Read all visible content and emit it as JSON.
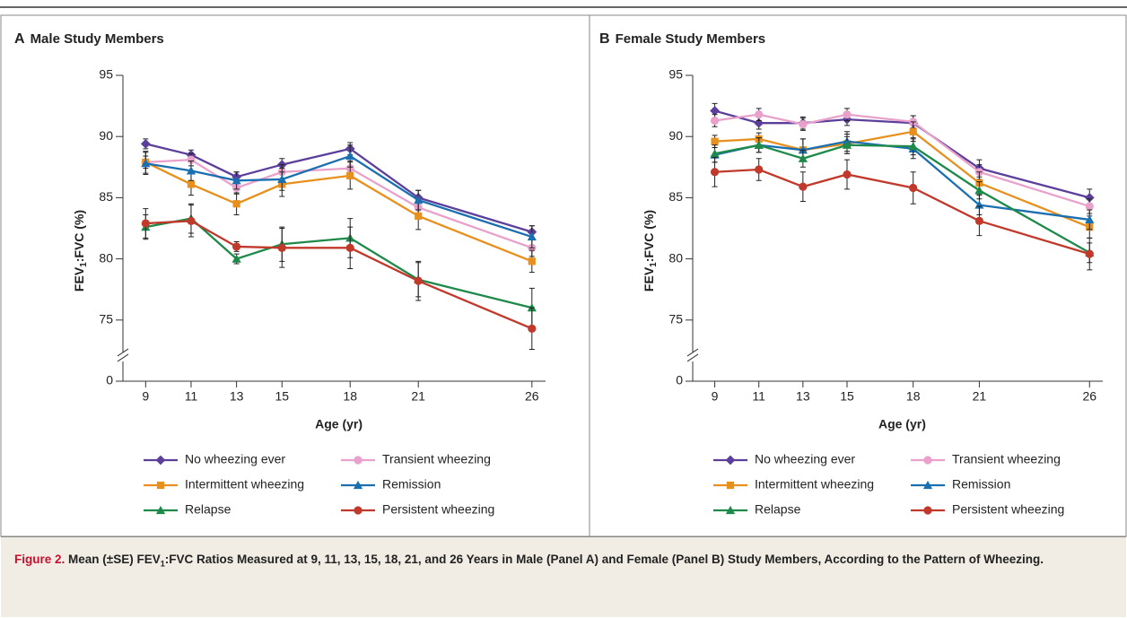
{
  "chart_data": [
    {
      "type": "line",
      "panel_label": "A",
      "title": "Male Study Members",
      "ylabel": [
        "FEV",
        "1",
        ":FVC (%)"
      ],
      "xlabel": "Age (yr)",
      "x": [
        9,
        11,
        13,
        15,
        18,
        21,
        26
      ],
      "xlim": [
        8,
        26.6
      ],
      "xticks": [
        9,
        11,
        13,
        15,
        18,
        21,
        26
      ],
      "ylim": [
        0,
        95
      ],
      "yticks": [
        0,
        75,
        80,
        85,
        90,
        95
      ],
      "axis_break": true,
      "series": [
        {
          "name": "No wheezing ever",
          "color": "#5b3f9a",
          "marker": "diamond",
          "values": [
            89.4,
            88.5,
            86.7,
            87.7,
            89.0,
            85.0,
            82.2
          ],
          "errors": [
            0.4,
            0.4,
            0.4,
            0.5,
            0.5,
            0.6,
            0.5
          ]
        },
        {
          "name": "Transient wheezing",
          "color": "#e9a1cb",
          "marker": "circle",
          "values": [
            87.9,
            88.1,
            85.8,
            87.1,
            87.4,
            84.2,
            80.9
          ],
          "errors": [
            0.5,
            0.5,
            0.5,
            0.6,
            0.6,
            0.6,
            0.7
          ]
        },
        {
          "name": "Intermittent wheezing",
          "color": "#e8901e",
          "marker": "square",
          "values": [
            87.9,
            86.1,
            84.5,
            86.1,
            86.8,
            83.5,
            79.8
          ],
          "errors": [
            0.9,
            0.9,
            0.9,
            1.0,
            1.1,
            1.1,
            0.9
          ]
        },
        {
          "name": "Remission",
          "color": "#1a6fb0",
          "marker": "triangle",
          "values": [
            87.8,
            87.2,
            86.4,
            86.5,
            88.4,
            84.8,
            81.8
          ],
          "errors": [
            0.9,
            0.8,
            0.7,
            0.9,
            0.9,
            0.8,
            0.9
          ]
        },
        {
          "name": "Relapse",
          "color": "#1e8a4a",
          "marker": "triangle",
          "values": [
            82.6,
            83.3,
            80.0,
            81.2,
            81.7,
            78.3,
            76.0
          ],
          "errors": [
            1.0,
            1.2,
            0.4,
            1.4,
            1.6,
            1.4,
            1.6
          ]
        },
        {
          "name": "Persistent wheezing",
          "color": "#c0392b",
          "marker": "circle",
          "values": [
            82.9,
            83.1,
            81.0,
            80.9,
            80.9,
            78.2,
            74.3
          ],
          "errors": [
            1.2,
            1.3,
            0.4,
            1.6,
            1.7,
            1.6,
            1.7
          ]
        }
      ]
    },
    {
      "type": "line",
      "panel_label": "B",
      "title": "Female Study Members",
      "ylabel": [
        "FEV",
        "1",
        ":FVC (%)"
      ],
      "xlabel": "Age (yr)",
      "x": [
        9,
        11,
        13,
        15,
        18,
        21,
        26
      ],
      "xlim": [
        8,
        26.6
      ],
      "xticks": [
        9,
        11,
        13,
        15,
        18,
        21,
        26
      ],
      "ylim": [
        0,
        95
      ],
      "yticks": [
        0,
        75,
        80,
        85,
        90,
        95
      ],
      "axis_break": true,
      "series": [
        {
          "name": "No wheezing ever",
          "color": "#5b3f9a",
          "marker": "diamond",
          "values": [
            92.1,
            91.1,
            91.1,
            91.4,
            91.1,
            87.4,
            85.0
          ],
          "errors": [
            0.6,
            0.5,
            0.5,
            0.5,
            0.6,
            0.7,
            0.7
          ]
        },
        {
          "name": "Transient wheezing",
          "color": "#e9a1cb",
          "marker": "circle",
          "values": [
            91.3,
            91.8,
            91.0,
            91.8,
            91.2,
            87.1,
            84.3
          ],
          "errors": [
            0.5,
            0.5,
            0.5,
            0.5,
            0.5,
            0.6,
            0.6
          ]
        },
        {
          "name": "Intermittent wheezing",
          "color": "#e8901e",
          "marker": "square",
          "values": [
            89.6,
            89.8,
            88.9,
            89.4,
            90.4,
            86.2,
            82.6
          ],
          "errors": [
            0.5,
            0.5,
            0.9,
            0.8,
            0.8,
            0.9,
            0.9
          ]
        },
        {
          "name": "Remission",
          "color": "#1a6fb0",
          "marker": "triangle",
          "values": [
            88.5,
            89.3,
            88.9,
            89.6,
            89.0,
            84.4,
            83.2
          ],
          "errors": [
            0.6,
            0.6,
            0.9,
            0.8,
            0.8,
            0.8,
            0.8
          ]
        },
        {
          "name": "Relapse",
          "color": "#1e8a4a",
          "marker": "triangle",
          "values": [
            88.6,
            89.3,
            88.2,
            89.3,
            89.2,
            85.6,
            80.5
          ],
          "errors": [
            0.7,
            0.6,
            0.7,
            0.7,
            0.7,
            0.7,
            0.8
          ]
        },
        {
          "name": "Persistent wheezing",
          "color": "#c0392b",
          "marker": "circle",
          "values": [
            87.1,
            87.3,
            85.9,
            86.9,
            85.8,
            83.1,
            80.4
          ],
          "errors": [
            1.2,
            0.9,
            1.2,
            1.2,
            1.3,
            1.2,
            1.3
          ]
        }
      ]
    }
  ],
  "caption": {
    "label": "Figure 2.",
    "text": [
      "Mean (±SE) FEV",
      "1",
      ":FVC Ratios Measured at 9, 11, 13, 15, 18, 21, and 26 Years in Male (Panel A) and Female (Panel B) Study Members, According to the Pattern of Wheezing."
    ]
  }
}
